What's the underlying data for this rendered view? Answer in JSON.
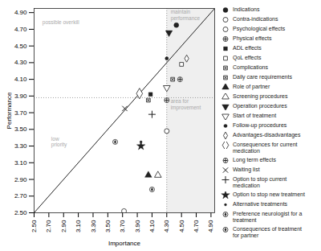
{
  "chart_data": {
    "type": "scatter",
    "xlabel": "Importance",
    "ylabel": "Performance",
    "xlim": [
      2.5,
      4.95
    ],
    "ylim": [
      2.5,
      4.95
    ],
    "xticks": [
      {
        "value": 2.5,
        "label": "2.50"
      },
      {
        "value": 2.7,
        "label": "2.70"
      },
      {
        "value": 2.9,
        "label": "2.90"
      },
      {
        "value": 3.1,
        "label": "3.10"
      },
      {
        "value": 3.3,
        "label": "3.30"
      },
      {
        "value": 3.5,
        "label": "3.50"
      },
      {
        "value": 3.7,
        "label": "3.70"
      },
      {
        "value": 3.9,
        "label": "3.90"
      },
      {
        "value": 4.1,
        "label": "4.10"
      },
      {
        "value": 4.3,
        "label": "4.30"
      },
      {
        "value": 4.5,
        "label": "4.50"
      },
      {
        "value": 4.7,
        "label": "4.70"
      },
      {
        "value": 4.9,
        "label": "4.90"
      }
    ],
    "yticks": [
      {
        "value": 2.5,
        "label": "2.50"
      },
      {
        "value": 2.7,
        "label": "2.70"
      },
      {
        "value": 2.9,
        "label": "2.90"
      },
      {
        "value": 3.1,
        "label": "3.10"
      },
      {
        "value": 3.3,
        "label": "3.30"
      },
      {
        "value": 3.5,
        "label": "3.50"
      },
      {
        "value": 3.7,
        "label": "3.70"
      },
      {
        "value": 3.9,
        "label": "3.90"
      },
      {
        "value": 4.1,
        "label": "4.10"
      },
      {
        "value": 4.3,
        "label": "4.30"
      },
      {
        "value": 4.5,
        "label": "4.50"
      },
      {
        "value": 4.7,
        "label": "4.70"
      },
      {
        "value": 4.9,
        "label": "4.90"
      }
    ],
    "grid": false,
    "legend": "right",
    "color": "#222222",
    "shade": {
      "x": [
        4.3,
        4.95
      ],
      "color": "#e8e8e8"
    },
    "reference_lines": [
      {
        "x": 4.3,
        "color": "#888888"
      },
      {
        "y": 3.88,
        "color": "#888888"
      }
    ],
    "lines": [
      {
        "x": [
          2.5,
          4.95
        ],
        "y": [
          2.5,
          4.95
        ],
        "color": "#222222"
      }
    ],
    "annotations": [
      {
        "text": "maintain\nperformance",
        "x": 4.32,
        "y": 4.94,
        "color": "#aaaaaa"
      },
      {
        "text": "possible overkill",
        "x": 2.58,
        "y": 4.82,
        "color": "#aaaaaa"
      },
      {
        "text": "area for\nimprovement",
        "x": 4.32,
        "y": 3.87,
        "color": "#aaaaaa"
      },
      {
        "text": "low\npriority",
        "x": 2.7,
        "y": 3.42,
        "color": "#aaaaaa"
      }
    ],
    "series": [
      {
        "name": "Indications",
        "marker": "circle_filled",
        "x": [
          4.43
        ],
        "y": [
          4.75
        ]
      },
      {
        "name": "Contra-indications",
        "marker": "circle_open",
        "x": [
          3.72
        ],
        "y": [
          2.52
        ]
      },
      {
        "name": "Psychological effects",
        "marker": "circle_open",
        "x": [
          4.3
        ],
        "y": [
          3.48
        ]
      },
      {
        "name": "Physical effects",
        "marker": "circle_cross",
        "x": [
          4.48
        ],
        "y": [
          4.1
        ]
      },
      {
        "name": "ADL effects",
        "marker": "square_filled",
        "x": [
          4.08
        ],
        "y": [
          3.92
        ]
      },
      {
        "name": "QoL effects",
        "marker": "square_open",
        "x": [
          4.5
        ],
        "y": [
          4.28
        ]
      },
      {
        "name": "Complications",
        "marker": "square_hatch",
        "x": [
          4.38
        ],
        "y": [
          4.1
        ]
      },
      {
        "name": "Daily care requirements",
        "marker": "square_cross",
        "x": [
          4.05
        ],
        "y": [
          3.85
        ]
      },
      {
        "name": "Role of partner",
        "marker": "triangle_filled",
        "x": [
          4.05
        ],
        "y": [
          2.95
        ]
      },
      {
        "name": "Screening procedures",
        "marker": "triangle_open",
        "x": [
          4.18
        ],
        "y": [
          2.95
        ]
      },
      {
        "name": "Operation procedures",
        "marker": "tri_down_filled",
        "x": [
          4.33
        ],
        "y": [
          4.66
        ]
      },
      {
        "name": "Start of treatment",
        "marker": "tri_down_open",
        "x": [
          4.3
        ],
        "y": [
          4.0
        ]
      },
      {
        "name": "Follow-up procedures",
        "marker": "circle_small_filled",
        "x": [
          4.3
        ],
        "y": [
          4.35
        ]
      },
      {
        "name": "Advantages-disadvantages",
        "marker": "diamond_open",
        "x": [
          4.57
        ],
        "y": [
          4.35
        ]
      },
      {
        "name": "Consequences for current\nmedication",
        "marker": "diamond_open_large",
        "x": [
          3.93
        ],
        "y": [
          3.93
        ]
      },
      {
        "name": "Long term effects",
        "marker": "circle_plus",
        "x": [
          4.3
        ],
        "y": [
          3.85
        ]
      },
      {
        "name": "Waiting list",
        "marker": "x_marker",
        "x": [
          3.73
        ],
        "y": [
          3.75
        ]
      },
      {
        "name": "Option to stop current\nmedication",
        "marker": "plus_marker",
        "x": [
          4.1
        ],
        "y": [
          3.68
        ]
      },
      {
        "name": "Option to stop new treatment",
        "marker": "star_marker",
        "x": [
          3.95
        ],
        "y": [
          3.3
        ]
      },
      {
        "name": "Alternative treatments",
        "marker": "dot_small",
        "x": [
          3.95
        ],
        "y": [
          3.35
        ]
      },
      {
        "name": "Preference neurologist for a\ntreatment",
        "marker": "circle_half",
        "x": [
          4.1
        ],
        "y": [
          2.78
        ]
      },
      {
        "name": "Consequences of treatment\nfor partner",
        "marker": "circle_half_bottom",
        "x": [
          3.6
        ],
        "y": [
          3.35
        ]
      }
    ]
  }
}
